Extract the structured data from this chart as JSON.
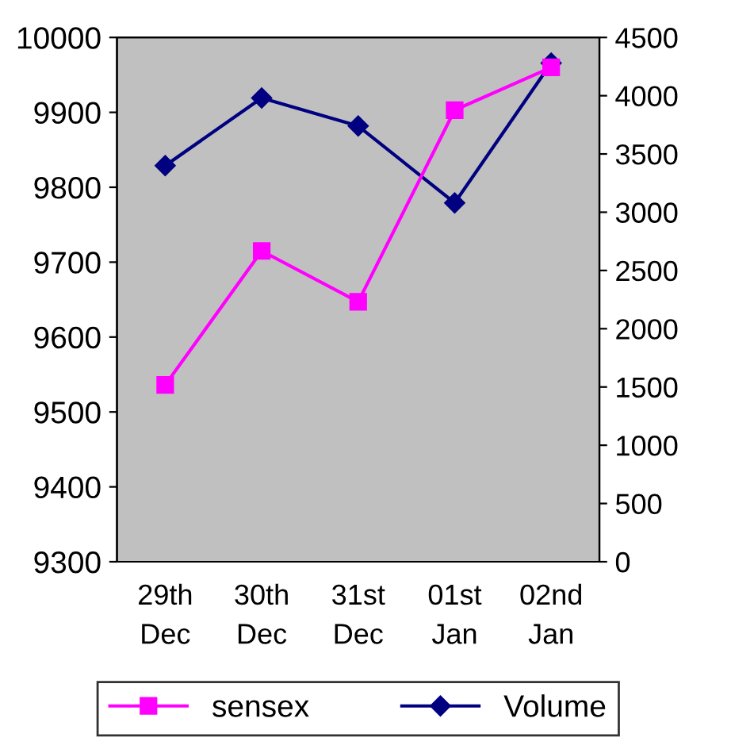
{
  "chart_data": {
    "type": "line",
    "categories": [
      "29th\nDec",
      "30th\nDec",
      "31st\nDec",
      "01st\nJan",
      "02nd\nJan"
    ],
    "series": [
      {
        "name": "sensex",
        "color": "#ff00ff",
        "marker": "square",
        "values": [
          9536,
          9715,
          9647,
          9903,
          9960
        ]
      },
      {
        "name": "Volume",
        "color": "#000080",
        "marker": "diamond",
        "axis": "y2",
        "values": [
          3400,
          3980,
          3740,
          3080,
          4280
        ]
      }
    ],
    "ylim": [
      9300,
      10000
    ],
    "yticks": [
      9300,
      9400,
      9500,
      9600,
      9700,
      9800,
      9900,
      10000
    ],
    "y2lim": [
      0,
      4500
    ],
    "y2ticks": [
      0,
      500,
      1000,
      1500,
      2000,
      2500,
      3000,
      3500,
      4000,
      4500
    ],
    "grid": false,
    "legend": "bottom",
    "line_style": "solid"
  }
}
